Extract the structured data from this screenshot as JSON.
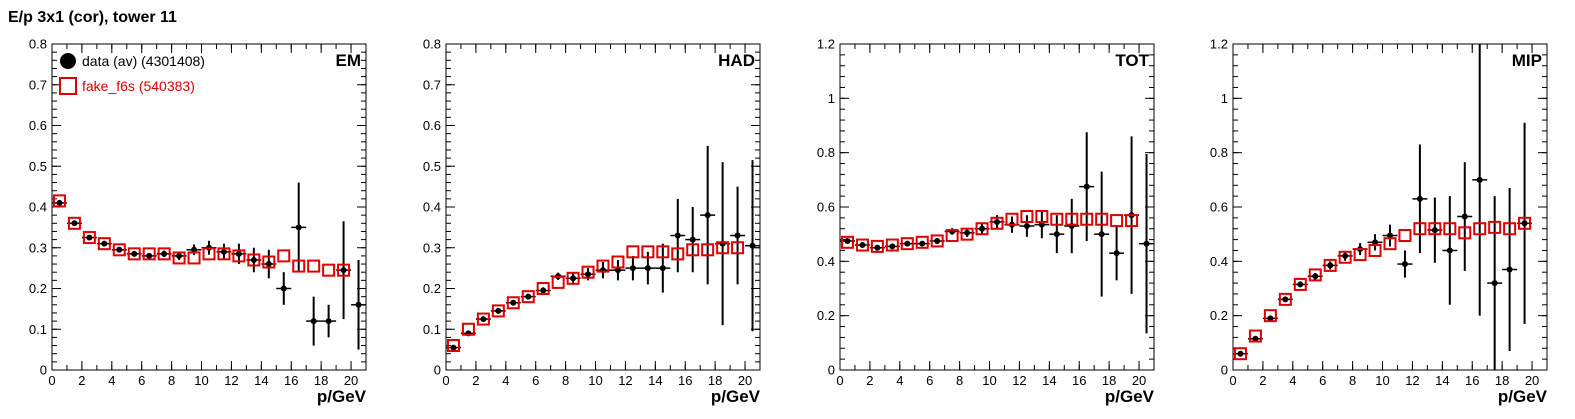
{
  "figure": {
    "title": "E/p 3x1 (cor), tower 11"
  },
  "legend": {
    "data_label": "data (av) (4301408)",
    "sim_label": "fake_f6s (540383)"
  },
  "colors": {
    "data": "#000000",
    "sim": "#e00000"
  },
  "chart_data": [
    {
      "type": "scatter",
      "title": "EM",
      "xlabel": "p/GeV",
      "ylabel": "",
      "xlim": [
        0,
        21
      ],
      "ylim": [
        0,
        0.8
      ],
      "xticks": [
        0,
        2,
        4,
        6,
        8,
        10,
        12,
        14,
        16,
        18,
        20
      ],
      "yticks": [
        0,
        0.1,
        0.2,
        0.3,
        0.4,
        0.5,
        0.6,
        0.7,
        0.8
      ],
      "ytick_labels": [
        "0",
        "0.1",
        "0.2",
        "0.3",
        "0.4",
        "0.5",
        "0.6",
        "0.7",
        "0.8"
      ],
      "legend_position": "top-left",
      "series": [
        {
          "name": "data (av) (4301408)",
          "x": [
            0.5,
            1.5,
            2.5,
            3.5,
            4.5,
            5.5,
            6.5,
            7.5,
            8.5,
            9.5,
            10.5,
            11.5,
            12.5,
            13.5,
            14.5,
            15.5,
            16.5,
            17.5,
            18.5,
            19.5,
            20.5
          ],
          "y": [
            0.41,
            0.36,
            0.325,
            0.31,
            0.295,
            0.285,
            0.28,
            0.285,
            0.28,
            0.295,
            0.3,
            0.29,
            0.285,
            0.27,
            0.26,
            0.2,
            0.35,
            0.12,
            0.12,
            0.245,
            0.16
          ],
          "err": [
            0.005,
            0.005,
            0.004,
            0.004,
            0.005,
            0.005,
            0.006,
            0.008,
            0.01,
            0.013,
            0.017,
            0.02,
            0.025,
            0.03,
            0.035,
            0.04,
            0.11,
            0.06,
            0.04,
            0.12,
            0.11
          ]
        },
        {
          "name": "fake_f6s (540383)",
          "x": [
            0.5,
            1.5,
            2.5,
            3.5,
            4.5,
            5.5,
            6.5,
            7.5,
            8.5,
            9.5,
            10.5,
            11.5,
            12.5,
            13.5,
            14.5,
            15.5,
            16.5,
            17.5,
            18.5,
            19.5
          ],
          "y": [
            0.415,
            0.36,
            0.325,
            0.31,
            0.295,
            0.285,
            0.285,
            0.285,
            0.275,
            0.275,
            0.285,
            0.285,
            0.28,
            0.27,
            0.265,
            0.28,
            0.255,
            0.255,
            0.245,
            0.245
          ]
        }
      ]
    },
    {
      "type": "scatter",
      "title": "HAD",
      "xlabel": "p/GeV",
      "ylabel": "",
      "xlim": [
        0,
        21
      ],
      "ylim": [
        0,
        0.8
      ],
      "xticks": [
        0,
        2,
        4,
        6,
        8,
        10,
        12,
        14,
        16,
        18,
        20
      ],
      "yticks": [
        0,
        0.1,
        0.2,
        0.3,
        0.4,
        0.5,
        0.6,
        0.7,
        0.8
      ],
      "ytick_labels": [
        "0",
        "0.1",
        "0.2",
        "0.3",
        "0.4",
        "0.5",
        "0.6",
        "0.7",
        "0.8"
      ],
      "series": [
        {
          "name": "data",
          "x": [
            0.5,
            1.5,
            2.5,
            3.5,
            4.5,
            5.5,
            6.5,
            7.5,
            8.5,
            9.5,
            10.5,
            11.5,
            12.5,
            13.5,
            14.5,
            15.5,
            16.5,
            17.5,
            18.5,
            19.5,
            20.5
          ],
          "y": [
            0.055,
            0.09,
            0.125,
            0.145,
            0.165,
            0.18,
            0.195,
            0.23,
            0.225,
            0.235,
            0.245,
            0.245,
            0.25,
            0.25,
            0.25,
            0.33,
            0.32,
            0.38,
            0.31,
            0.33,
            0.305
          ],
          "err": [
            0.005,
            0.005,
            0.005,
            0.005,
            0.006,
            0.007,
            0.008,
            0.009,
            0.012,
            0.015,
            0.02,
            0.025,
            0.03,
            0.04,
            0.06,
            0.09,
            0.08,
            0.17,
            0.2,
            0.12,
            0.21
          ]
        },
        {
          "name": "fake_f6s",
          "x": [
            0.5,
            1.5,
            2.5,
            3.5,
            4.5,
            5.5,
            6.5,
            7.5,
            8.5,
            9.5,
            10.5,
            11.5,
            12.5,
            13.5,
            14.5,
            15.5,
            16.5,
            17.5,
            18.5,
            19.5
          ],
          "y": [
            0.06,
            0.1,
            0.125,
            0.145,
            0.165,
            0.18,
            0.2,
            0.215,
            0.225,
            0.24,
            0.255,
            0.265,
            0.29,
            0.29,
            0.29,
            0.285,
            0.295,
            0.295,
            0.3,
            0.3
          ]
        }
      ]
    },
    {
      "type": "scatter",
      "title": "TOT",
      "xlabel": "p/GeV",
      "ylabel": "",
      "xlim": [
        0,
        21
      ],
      "ylim": [
        0,
        1.2
      ],
      "xticks": [
        0,
        2,
        4,
        6,
        8,
        10,
        12,
        14,
        16,
        18,
        20
      ],
      "yticks": [
        0,
        0.2,
        0.4,
        0.6,
        0.8,
        1.0,
        1.2
      ],
      "ytick_labels": [
        "0",
        "0.2",
        "0.4",
        "0.6",
        "0.8",
        "1",
        "1.2"
      ],
      "series": [
        {
          "name": "data",
          "x": [
            0.5,
            1.5,
            2.5,
            3.5,
            4.5,
            5.5,
            6.5,
            7.5,
            8.5,
            9.5,
            10.5,
            11.5,
            12.5,
            13.5,
            14.5,
            15.5,
            16.5,
            17.5,
            18.5,
            19.5,
            20.5
          ],
          "y": [
            0.475,
            0.46,
            0.45,
            0.455,
            0.465,
            0.465,
            0.475,
            0.51,
            0.505,
            0.52,
            0.545,
            0.535,
            0.53,
            0.535,
            0.5,
            0.53,
            0.675,
            0.5,
            0.43,
            0.57,
            0.465
          ],
          "err": [
            0.006,
            0.006,
            0.006,
            0.006,
            0.007,
            0.008,
            0.01,
            0.012,
            0.015,
            0.02,
            0.025,
            0.03,
            0.04,
            0.05,
            0.07,
            0.1,
            0.2,
            0.23,
            0.1,
            0.29,
            0.33
          ]
        },
        {
          "name": "fake_f6s",
          "x": [
            0.5,
            1.5,
            2.5,
            3.5,
            4.5,
            5.5,
            6.5,
            7.5,
            8.5,
            9.5,
            10.5,
            11.5,
            12.5,
            13.5,
            14.5,
            15.5,
            16.5,
            17.5,
            18.5,
            19.5
          ],
          "y": [
            0.47,
            0.46,
            0.455,
            0.46,
            0.465,
            0.47,
            0.475,
            0.495,
            0.5,
            0.52,
            0.54,
            0.555,
            0.565,
            0.565,
            0.555,
            0.555,
            0.555,
            0.555,
            0.55,
            0.55
          ]
        }
      ]
    },
    {
      "type": "scatter",
      "title": "MIP",
      "xlabel": "p/GeV",
      "ylabel": "",
      "xlim": [
        0,
        21
      ],
      "ylim": [
        0,
        1.2
      ],
      "xticks": [
        0,
        2,
        4,
        6,
        8,
        10,
        12,
        14,
        16,
        18,
        20
      ],
      "yticks": [
        0,
        0.2,
        0.4,
        0.6,
        0.8,
        1.0,
        1.2
      ],
      "ytick_labels": [
        "0",
        "0.2",
        "0.4",
        "0.6",
        "0.8",
        "1",
        "1.2"
      ],
      "series": [
        {
          "name": "data",
          "x": [
            0.5,
            1.5,
            2.5,
            3.5,
            4.5,
            5.5,
            6.5,
            7.5,
            8.5,
            9.5,
            10.5,
            11.5,
            12.5,
            13.5,
            14.5,
            15.5,
            16.5,
            17.5,
            18.5,
            19.5
          ],
          "y": [
            0.06,
            0.115,
            0.19,
            0.26,
            0.315,
            0.345,
            0.385,
            0.42,
            0.445,
            0.47,
            0.495,
            0.39,
            0.63,
            0.515,
            0.44,
            0.565,
            0.7,
            0.32,
            0.37,
            0.54
          ],
          "err": [
            0.006,
            0.006,
            0.008,
            0.009,
            0.01,
            0.012,
            0.015,
            0.018,
            0.022,
            0.03,
            0.04,
            0.05,
            0.2,
            0.12,
            0.2,
            0.2,
            0.5,
            0.32,
            0.3,
            0.37
          ]
        },
        {
          "name": "fake_f6s",
          "x": [
            0.5,
            1.5,
            2.5,
            3.5,
            4.5,
            5.5,
            6.5,
            7.5,
            8.5,
            9.5,
            10.5,
            11.5,
            12.5,
            13.5,
            14.5,
            15.5,
            16.5,
            17.5,
            18.5,
            19.5
          ],
          "y": [
            0.06,
            0.125,
            0.2,
            0.26,
            0.315,
            0.35,
            0.385,
            0.415,
            0.425,
            0.44,
            0.465,
            0.495,
            0.52,
            0.52,
            0.52,
            0.505,
            0.52,
            0.525,
            0.52,
            0.54
          ]
        }
      ]
    }
  ]
}
